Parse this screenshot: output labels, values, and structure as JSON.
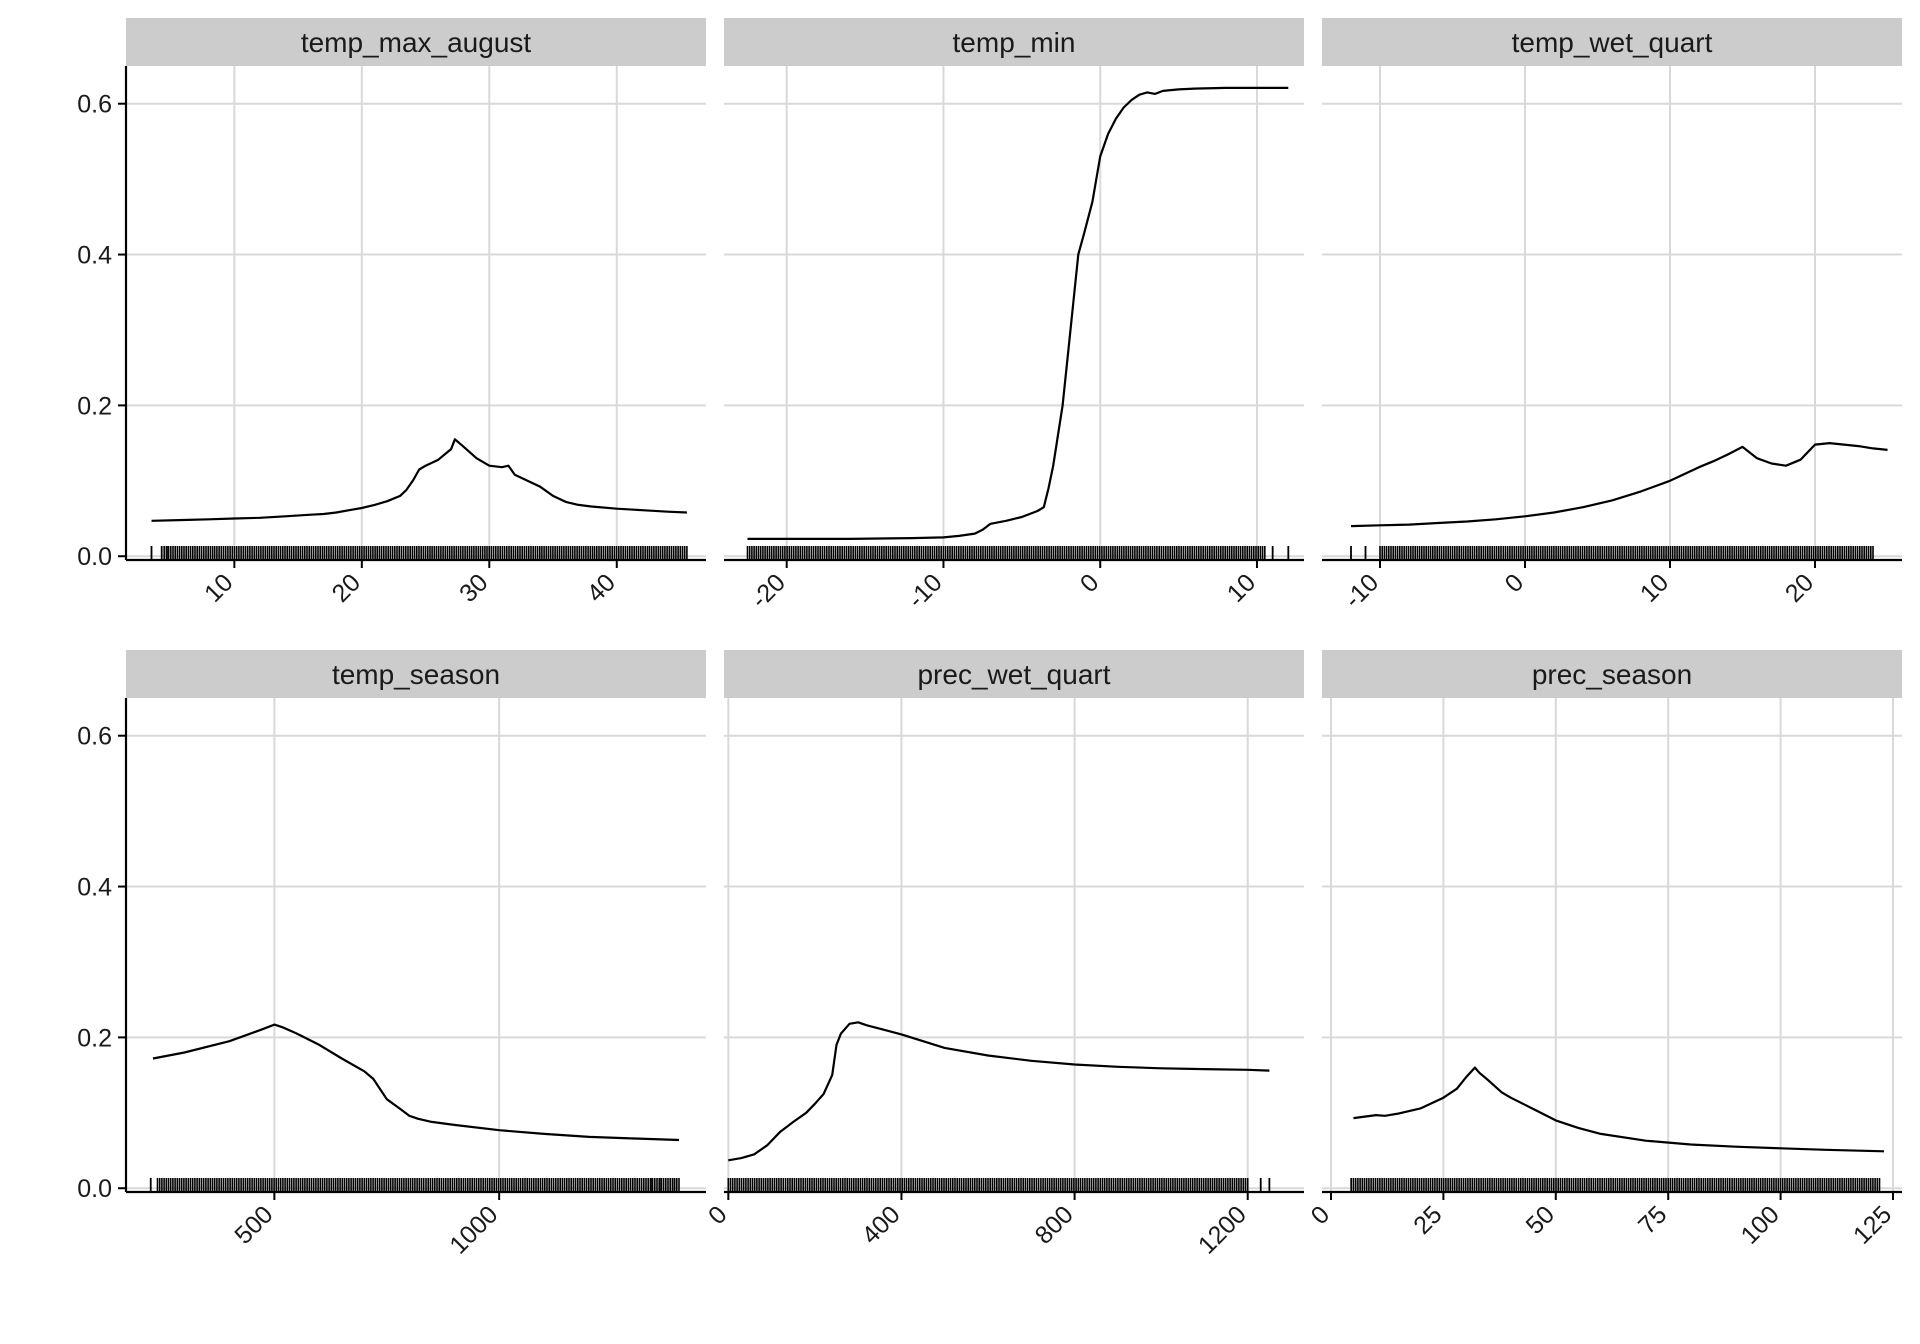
{
  "chart_data": {
    "type": "line",
    "layout": "facet-grid 2x3",
    "shared_y": true,
    "y_ticks": [
      0.0,
      0.2,
      0.4,
      0.6
    ],
    "y_tick_labels": [
      "0.0",
      "0.2",
      "0.4",
      "0.6"
    ],
    "ylim": [
      -0.005,
      0.65
    ],
    "grid": true,
    "line_color": "#000000",
    "strip_color": "#cccccc",
    "grid_color": "#d9d9d9",
    "panels": [
      {
        "title": "temp_max_august",
        "xlim": [
          1.5,
          47
        ],
        "x_ticks": [
          10,
          20,
          30,
          40
        ],
        "x_tick_labels": [
          "10",
          "20",
          "30",
          "40"
        ],
        "x": [
          3.5,
          6,
          8,
          10,
          12,
          14,
          16,
          17,
          18,
          19,
          20,
          21,
          22,
          23,
          23.5,
          24,
          24.5,
          25,
          26,
          27,
          27.3,
          28,
          29,
          30,
          31,
          31.5,
          32,
          33,
          34,
          35,
          36,
          37,
          38,
          40,
          42,
          44,
          45.5
        ],
        "values": [
          0.047,
          0.048,
          0.049,
          0.05,
          0.051,
          0.053,
          0.055,
          0.056,
          0.058,
          0.061,
          0.064,
          0.068,
          0.073,
          0.08,
          0.088,
          0.1,
          0.115,
          0.12,
          0.128,
          0.142,
          0.155,
          0.145,
          0.13,
          0.12,
          0.118,
          0.12,
          0.108,
          0.1,
          0.092,
          0.08,
          0.072,
          0.068,
          0.066,
          0.063,
          0.061,
          0.059,
          0.058
        ],
        "rug": {
          "range": [
            4.5,
            45.5
          ],
          "sparse": [
            3.5,
            4.3,
            4.8
          ]
        }
      },
      {
        "title": "temp_min",
        "xlim": [
          -24,
          13
        ],
        "x_ticks": [
          -20,
          -10,
          0,
          10
        ],
        "x_tick_labels": [
          "-20",
          "-10",
          "0",
          "10"
        ],
        "x": [
          -22.5,
          -20,
          -16,
          -12,
          -10,
          -9,
          -8,
          -7.5,
          -7,
          -6,
          -5,
          -4,
          -3.6,
          -3.3,
          -3,
          -2.7,
          -2.4,
          -2,
          -1.7,
          -1.4,
          -1,
          -0.5,
          0,
          0.5,
          1,
          1.5,
          2,
          2.5,
          3,
          3.5,
          4,
          5,
          6,
          8,
          10,
          12
        ],
        "values": [
          0.023,
          0.023,
          0.023,
          0.024,
          0.025,
          0.027,
          0.03,
          0.035,
          0.043,
          0.047,
          0.052,
          0.06,
          0.065,
          0.09,
          0.12,
          0.16,
          0.2,
          0.28,
          0.34,
          0.4,
          0.43,
          0.47,
          0.53,
          0.56,
          0.58,
          0.595,
          0.605,
          0.612,
          0.615,
          0.613,
          0.617,
          0.619,
          0.62,
          0.621,
          0.621,
          0.621
        ],
        "rug": {
          "range": [
            -22.5,
            10.5
          ],
          "sparse": [
            11,
            12
          ]
        }
      },
      {
        "title": "temp_wet_quart",
        "xlim": [
          -14,
          26
        ],
        "x_ticks": [
          -10,
          0,
          10,
          20
        ],
        "x_tick_labels": [
          "-10",
          "0",
          "10",
          "20"
        ],
        "x": [
          -12,
          -10,
          -8,
          -6,
          -4,
          -2,
          0,
          2,
          4,
          6,
          8,
          10,
          12,
          13,
          14,
          15,
          16,
          17,
          18,
          19,
          19.5,
          20,
          21,
          22,
          23,
          24,
          25
        ],
        "values": [
          0.04,
          0.041,
          0.042,
          0.044,
          0.046,
          0.049,
          0.053,
          0.058,
          0.065,
          0.074,
          0.086,
          0.1,
          0.118,
          0.126,
          0.135,
          0.145,
          0.13,
          0.123,
          0.12,
          0.128,
          0.138,
          0.148,
          0.15,
          0.148,
          0.146,
          0.143,
          0.141
        ],
        "rug": {
          "range": [
            -10,
            24
          ],
          "sparse": [
            -12,
            -11
          ]
        }
      },
      {
        "title": "temp_season",
        "xlim": [
          170,
          1460
        ],
        "x_ticks": [
          500,
          1000
        ],
        "x_tick_labels": [
          "500",
          "1000"
        ],
        "x": [
          230,
          300,
          400,
          470,
          500,
          520,
          550,
          600,
          650,
          700,
          720,
          750,
          780,
          800,
          820,
          850,
          900,
          1000,
          1100,
          1200,
          1300,
          1400
        ],
        "values": [
          0.172,
          0.18,
          0.195,
          0.21,
          0.217,
          0.213,
          0.205,
          0.19,
          0.172,
          0.155,
          0.145,
          0.118,
          0.105,
          0.096,
          0.092,
          0.088,
          0.084,
          0.077,
          0.072,
          0.068,
          0.066,
          0.064
        ],
        "rug": {
          "range": [
            240,
            1400
          ],
          "sparse": [
            225,
            1340,
            1360,
            1390
          ]
        }
      },
      {
        "title": "prec_wet_quart",
        "xlim": [
          -10,
          1330
        ],
        "x_ticks": [
          0,
          400,
          800,
          1200
        ],
        "x_tick_labels": [
          "0",
          "400",
          "800",
          "1200"
        ],
        "x": [
          0,
          30,
          60,
          90,
          120,
          150,
          180,
          200,
          220,
          240,
          250,
          260,
          280,
          300,
          320,
          360,
          400,
          450,
          500,
          600,
          700,
          800,
          900,
          1000,
          1100,
          1200,
          1250
        ],
        "values": [
          0.037,
          0.04,
          0.045,
          0.057,
          0.075,
          0.088,
          0.1,
          0.112,
          0.125,
          0.15,
          0.19,
          0.205,
          0.218,
          0.22,
          0.216,
          0.21,
          0.204,
          0.195,
          0.186,
          0.176,
          0.169,
          0.164,
          0.161,
          0.159,
          0.158,
          0.157,
          0.156
        ],
        "rug": {
          "range": [
            0,
            1200
          ],
          "sparse": [
            1230,
            1250
          ]
        }
      },
      {
        "title": "prec_season",
        "xlim": [
          -2,
          127
        ],
        "x_ticks": [
          0,
          25,
          50,
          75,
          100,
          125
        ],
        "x_tick_labels": [
          "0",
          "25",
          "50",
          "75",
          "100",
          "125"
        ],
        "x": [
          5,
          10,
          12,
          15,
          20,
          25,
          28,
          30,
          32,
          33,
          35,
          38,
          40,
          45,
          50,
          55,
          60,
          70,
          80,
          90,
          100,
          110,
          123
        ],
        "values": [
          0.093,
          0.097,
          0.096,
          0.099,
          0.106,
          0.12,
          0.132,
          0.147,
          0.16,
          0.153,
          0.143,
          0.127,
          0.12,
          0.105,
          0.09,
          0.08,
          0.072,
          0.063,
          0.058,
          0.055,
          0.053,
          0.051,
          0.049
        ],
        "rug": {
          "range": [
            5,
            122
          ],
          "sparse": [
            4.5
          ]
        }
      }
    ]
  }
}
